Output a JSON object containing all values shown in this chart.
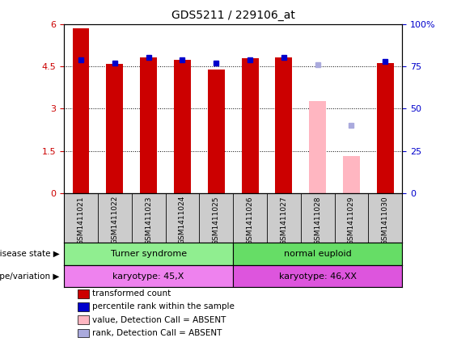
{
  "title": "GDS5211 / 229106_at",
  "samples": [
    "GSM1411021",
    "GSM1411022",
    "GSM1411023",
    "GSM1411024",
    "GSM1411025",
    "GSM1411026",
    "GSM1411027",
    "GSM1411028",
    "GSM1411029",
    "GSM1411030"
  ],
  "red_values": [
    5.85,
    4.58,
    4.82,
    4.74,
    4.39,
    4.79,
    4.82,
    3.28,
    1.32,
    4.62
  ],
  "blue_values_pct": [
    79,
    77,
    80,
    79,
    77,
    79,
    80,
    null,
    40,
    78
  ],
  "absent_red": [
    null,
    null,
    null,
    null,
    null,
    null,
    null,
    3.28,
    1.32,
    null
  ],
  "absent_blue_pct": [
    null,
    null,
    null,
    null,
    null,
    null,
    null,
    76,
    40,
    null
  ],
  "is_absent": [
    false,
    false,
    false,
    false,
    false,
    false,
    false,
    true,
    true,
    false
  ],
  "disease_state_groups": [
    {
      "label": "Turner syndrome",
      "start": 0,
      "end": 4,
      "color": "#90ee90"
    },
    {
      "label": "normal euploid",
      "start": 5,
      "end": 9,
      "color": "#66dd66"
    }
  ],
  "genotype_groups": [
    {
      "label": "karyotype: 45,X",
      "start": 0,
      "end": 4,
      "color": "#ee82ee"
    },
    {
      "label": "karyotype: 46,XX",
      "start": 5,
      "end": 9,
      "color": "#dd55dd"
    }
  ],
  "ylim_left": [
    0,
    6
  ],
  "ylim_right": [
    0,
    100
  ],
  "yticks_left": [
    0,
    1.5,
    3,
    4.5,
    6
  ],
  "yticks_right": [
    0,
    25,
    50,
    75,
    100
  ],
  "bar_color_red": "#cc0000",
  "bar_color_blue": "#0000cc",
  "bar_color_pink": "#ffb6c1",
  "bar_color_lightblue": "#aaaadd",
  "bg_color": "#cccccc",
  "legend_items": [
    {
      "label": "transformed count",
      "color": "#cc0000"
    },
    {
      "label": "percentile rank within the sample",
      "color": "#0000cc"
    },
    {
      "label": "value, Detection Call = ABSENT",
      "color": "#ffb6c1"
    },
    {
      "label": "rank, Detection Call = ABSENT",
      "color": "#aaaadd"
    }
  ],
  "right_axis_color": "#0000cc",
  "left_axis_color": "#cc0000"
}
